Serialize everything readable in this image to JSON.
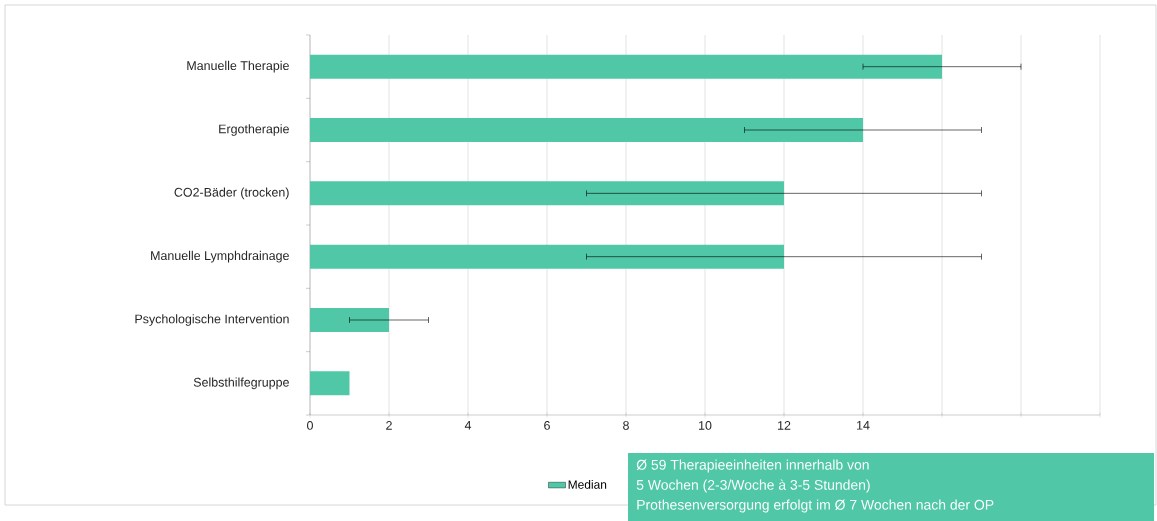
{
  "chart_data": {
    "type": "bar",
    "orientation": "horizontal",
    "categories": [
      "Manuelle Therapie",
      "Ergotherapie",
      "CO2-Bäder (trocken)",
      "Manuelle Lymphdrainage",
      "Psychologische Intervention",
      "Selbsthilfegruppe"
    ],
    "series": [
      {
        "name": "Median",
        "color": "#50c8a8",
        "values": [
          16,
          14,
          12,
          12,
          2,
          1
        ],
        "errors": [
          [
            14,
            18
          ],
          [
            11,
            17
          ],
          [
            7,
            17
          ],
          [
            7,
            17
          ],
          [
            1,
            3
          ],
          null
        ]
      }
    ],
    "xlim": [
      0,
      20
    ],
    "xticks": [
      0,
      2,
      4,
      6,
      8,
      10,
      12,
      14,
      {
        "value": 16,
        "label": null
      },
      {
        "value": 18,
        "label": null
      },
      {
        "value": 20,
        "label": null
      }
    ],
    "grid": "x",
    "legend": "bottom",
    "annotations": [
      "Ø 59 Therapieeinheiten innerhalb von",
      "5 Wochen (2-3/Woche à 3-5 Stunden)",
      "Prothesenversorgung erfolgt im Ø 7 Wochen nach der OP"
    ]
  }
}
